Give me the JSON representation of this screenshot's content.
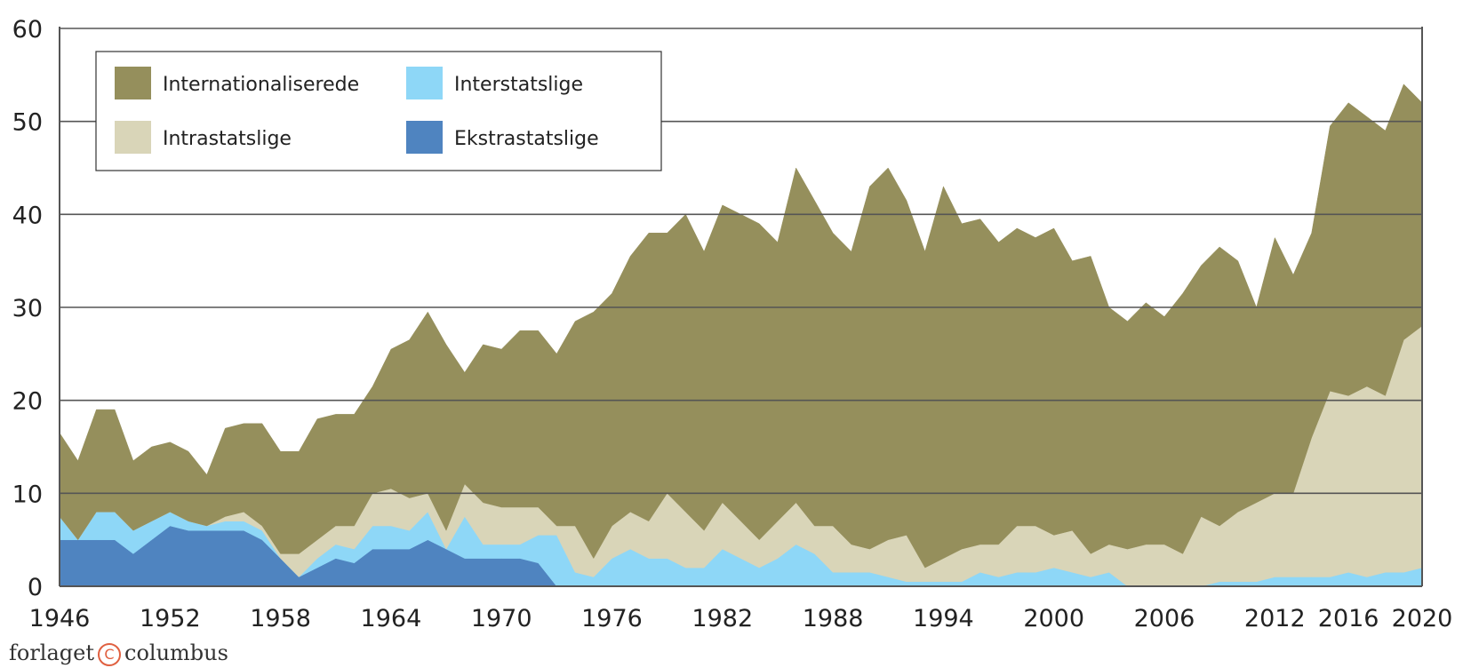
{
  "chart_data": {
    "type": "area",
    "stacked": true,
    "title": "",
    "xlabel": "",
    "ylabel": "",
    "xlim": [
      1946,
      2020
    ],
    "ylim": [
      0,
      60
    ],
    "grid": true,
    "legend_position": "top-left",
    "x_ticks": [
      1946,
      1952,
      1958,
      1964,
      1970,
      1976,
      1982,
      1988,
      1994,
      2000,
      2006,
      2012,
      2016,
      2020
    ],
    "y_ticks": [
      0,
      10,
      20,
      30,
      40,
      50,
      60
    ],
    "x": [
      1946,
      1947,
      1948,
      1949,
      1950,
      1951,
      1952,
      1953,
      1954,
      1955,
      1956,
      1957,
      1958,
      1959,
      1960,
      1961,
      1962,
      1963,
      1964,
      1965,
      1966,
      1967,
      1968,
      1969,
      1970,
      1971,
      1972,
      1973,
      1974,
      1975,
      1976,
      1977,
      1978,
      1979,
      1980,
      1981,
      1982,
      1983,
      1984,
      1985,
      1986,
      1987,
      1988,
      1989,
      1990,
      1991,
      1992,
      1993,
      1994,
      1995,
      1996,
      1997,
      1998,
      1999,
      2000,
      2001,
      2002,
      2003,
      2004,
      2005,
      2006,
      2007,
      2008,
      2009,
      2010,
      2011,
      2012,
      2013,
      2014,
      2015,
      2016,
      2017,
      2018,
      2019,
      2020
    ],
    "series": [
      {
        "name": "Ekstrastatslige",
        "color": "#4f84c0",
        "values": [
          5,
          5,
          5,
          5,
          3.5,
          5,
          6.5,
          6,
          6,
          6,
          6,
          5,
          3,
          1,
          2,
          3,
          2.5,
          4,
          4,
          4,
          5,
          4,
          3,
          3,
          3,
          3,
          2.5,
          0,
          0,
          0,
          0,
          0,
          0,
          0,
          0,
          0,
          0,
          0,
          0,
          0,
          0,
          0,
          0,
          0,
          0,
          0,
          0,
          0,
          0,
          0,
          0,
          0,
          0,
          0,
          0,
          0,
          0,
          0,
          0,
          0,
          0,
          0,
          0,
          0,
          0,
          0,
          0,
          0,
          0,
          0,
          0,
          0,
          0,
          0,
          0
        ]
      },
      {
        "name": "Interstatslige",
        "color": "#8ed7f7",
        "values": [
          2.5,
          0,
          3,
          3,
          2.5,
          2,
          1.5,
          1,
          0.5,
          1,
          1,
          1,
          0,
          0,
          1,
          1.5,
          1.5,
          2.5,
          2.5,
          2,
          3,
          0,
          4.5,
          1.5,
          1.5,
          1.5,
          3,
          5.5,
          1.5,
          1,
          3,
          4,
          3,
          3,
          2,
          2,
          4,
          3,
          2,
          3,
          4.5,
          3.5,
          1.5,
          1.5,
          1.5,
          1,
          0.5,
          0.5,
          0.5,
          0.5,
          1.5,
          1,
          1.5,
          1.5,
          2,
          1.5,
          1,
          1.5,
          0,
          0,
          0,
          0,
          0,
          0.5,
          0.5,
          0.5,
          1,
          1,
          1,
          1,
          1.5,
          1,
          1.5,
          1.5,
          2
        ]
      },
      {
        "name": "Intrastatslige",
        "color": "#d9d5b8",
        "values": [
          0,
          0,
          0,
          0,
          0,
          0,
          0,
          0,
          0,
          0.5,
          1,
          0.5,
          0.5,
          2.5,
          2,
          2,
          2.5,
          3.5,
          4,
          3.5,
          2,
          2,
          3.5,
          4.5,
          4,
          4,
          3,
          1,
          5,
          2,
          3.5,
          4,
          4,
          7,
          6,
          4,
          5,
          4,
          3,
          4,
          4.5,
          3,
          5,
          3,
          2.5,
          4,
          5,
          1.5,
          2.5,
          3.5,
          3,
          3.5,
          5,
          5,
          3.5,
          4.5,
          2.5,
          3,
          4,
          4.5,
          4.5,
          3.5,
          7.5,
          6,
          7.5,
          8.5,
          9,
          9,
          15,
          20,
          19,
          20.5,
          19,
          25,
          26
        ]
      },
      {
        "name": "Internationaliserede",
        "color": "#958f5c",
        "values": [
          9,
          8.5,
          11,
          11,
          7.5,
          8,
          7.5,
          7.5,
          5.5,
          9.5,
          9.5,
          11,
          11,
          11,
          13,
          12,
          12,
          11.5,
          15,
          17,
          19.5,
          20,
          12,
          17,
          17,
          19,
          19,
          18.5,
          22,
          26.5,
          25,
          27.5,
          31,
          28,
          32,
          30,
          32,
          33,
          34,
          30,
          36,
          35,
          31.5,
          31.5,
          39,
          40,
          36,
          34,
          40,
          35,
          35,
          32.5,
          32,
          31,
          33,
          29,
          32,
          25.5,
          24.5,
          26,
          24.5,
          28,
          27,
          30,
          27,
          21,
          27.5,
          23.5,
          22,
          28.5,
          31.5,
          29,
          28.5,
          27.5,
          24
        ]
      }
    ],
    "legend": [
      "Internationaliserede",
      "Interstatslige",
      "Intrastatslige",
      "Ekstrastatslige"
    ]
  },
  "footer": {
    "brand_left": "forlaget",
    "brand_mark": "C",
    "brand_right": "columbus"
  }
}
